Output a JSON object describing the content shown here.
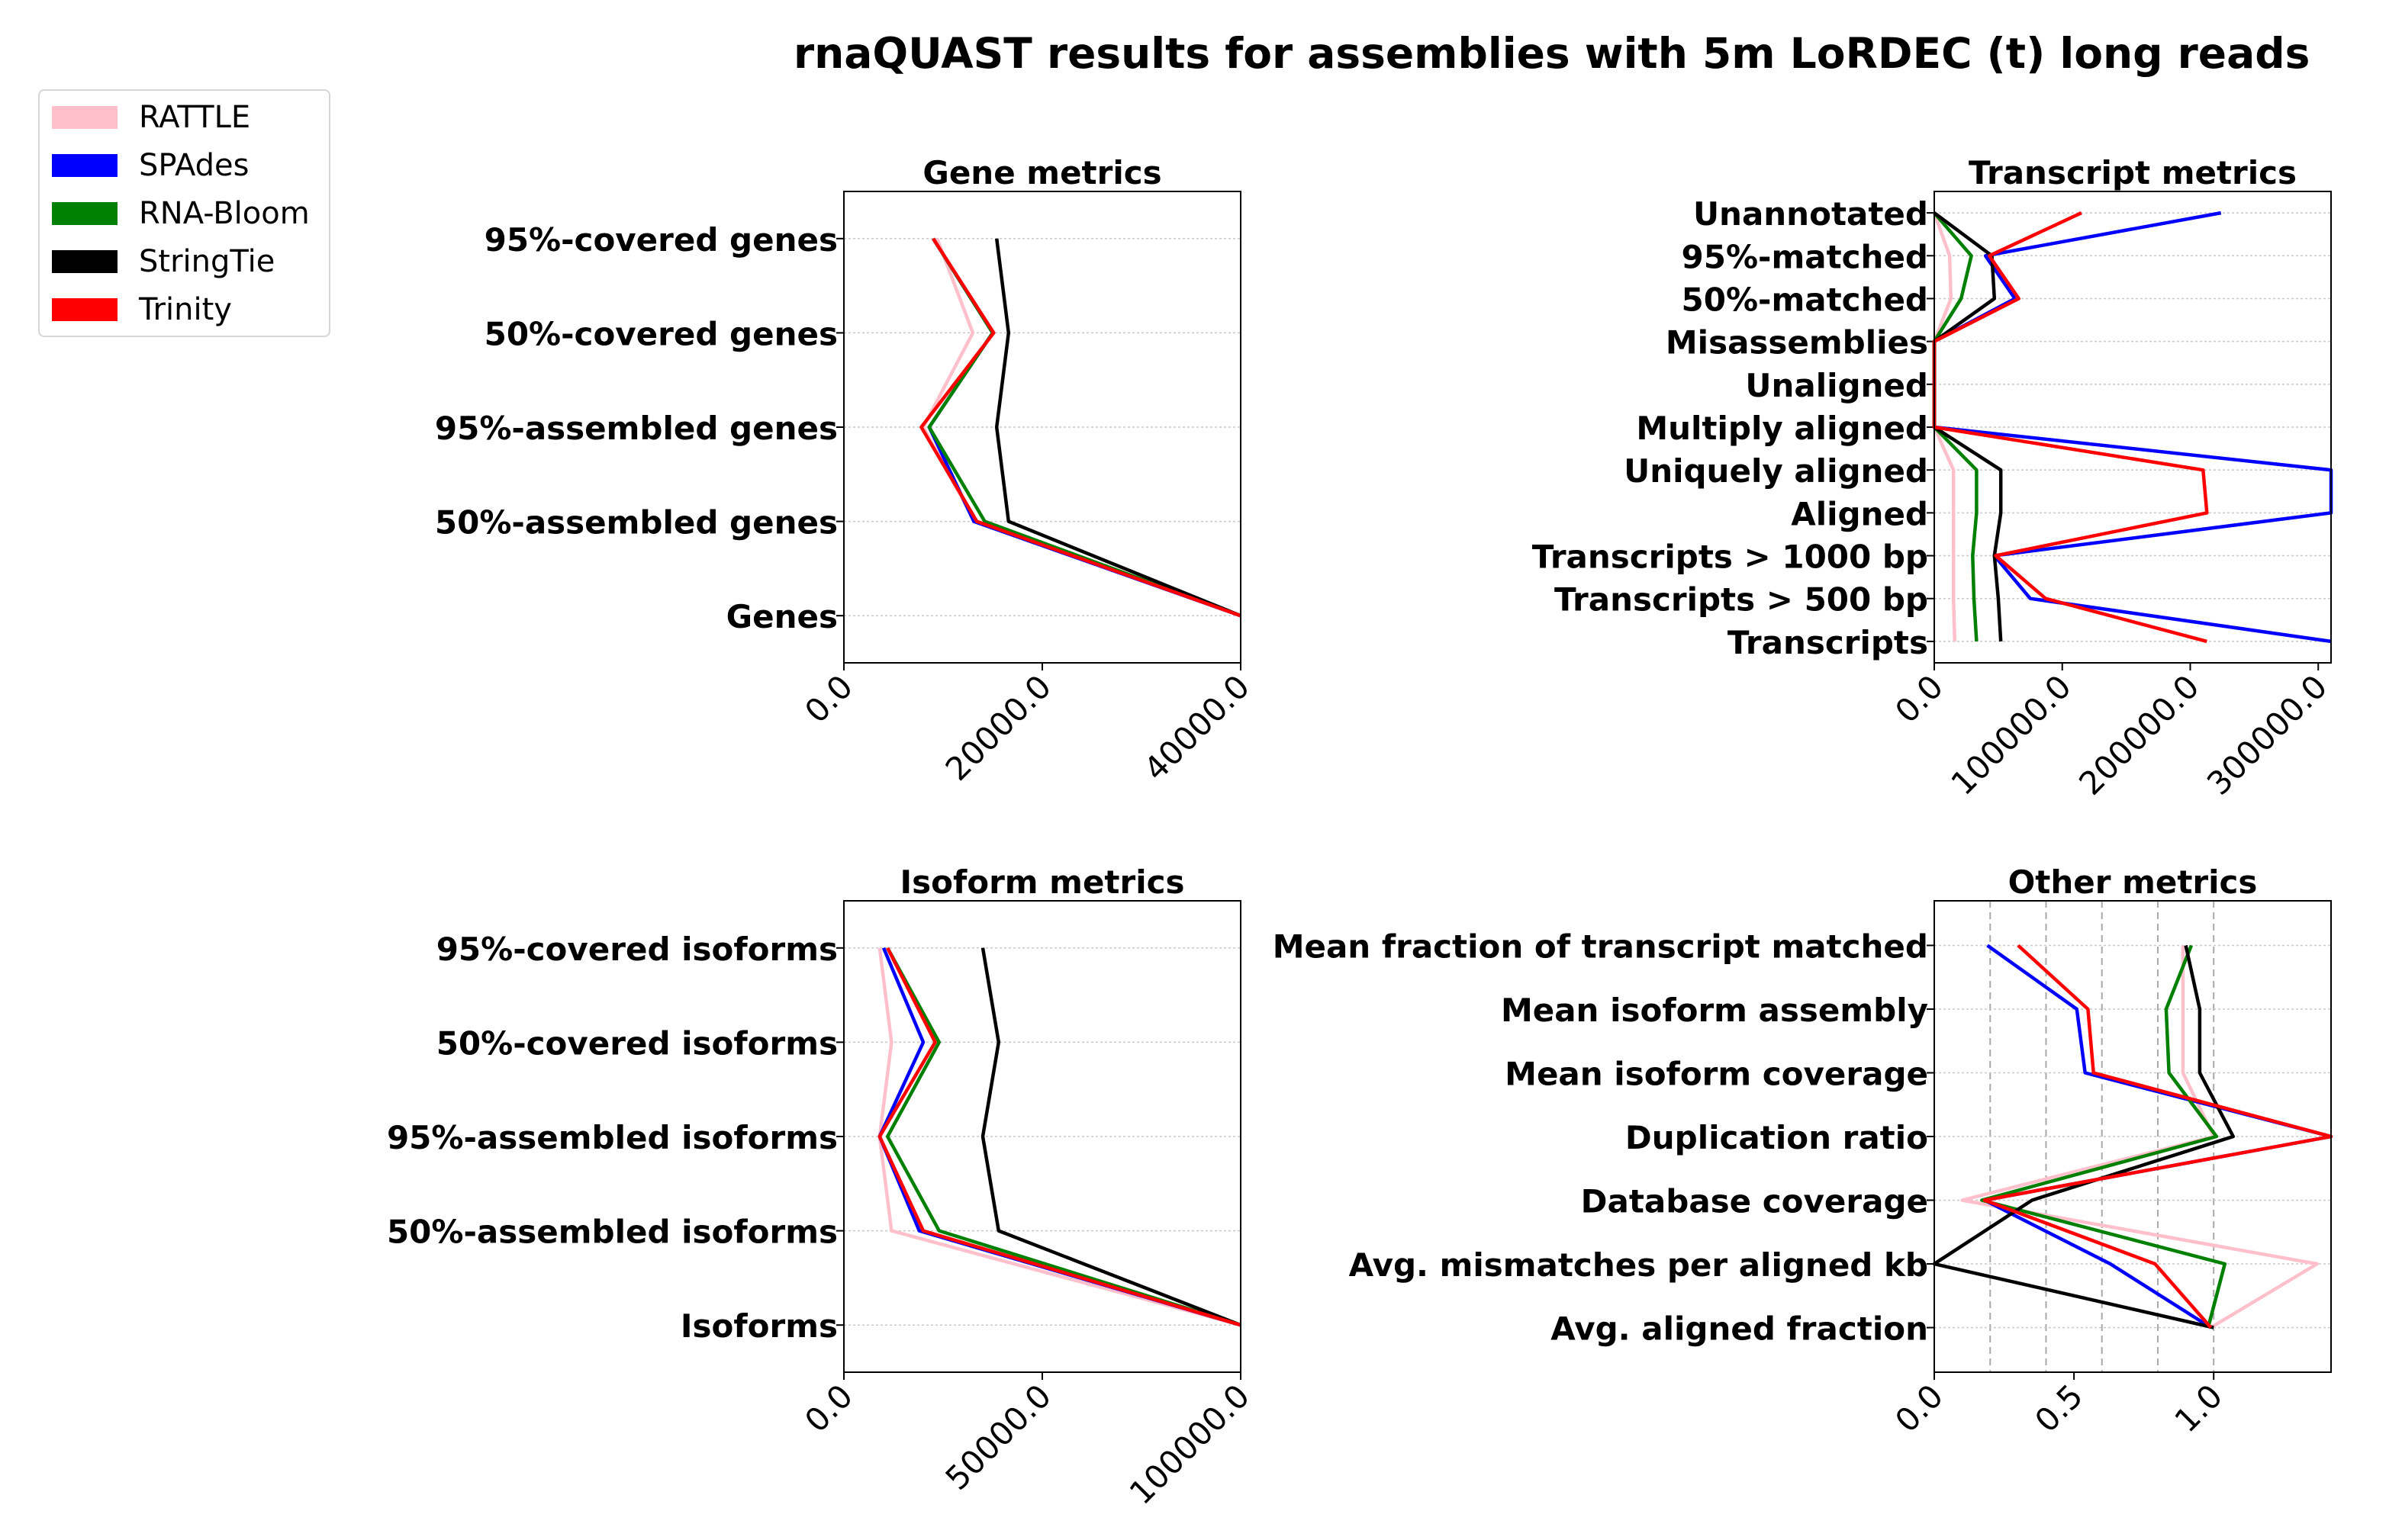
{
  "title": "rnaQUAST results for assemblies with 5m LoRDEC (t) long reads",
  "legend": [
    {
      "name": "RATTLE",
      "color": "#ffc0cb"
    },
    {
      "name": "SPAdes",
      "color": "#0000ff"
    },
    {
      "name": "RNA-Bloom",
      "color": "#008000"
    },
    {
      "name": "StringTie",
      "color": "#000000"
    },
    {
      "name": "Trinity",
      "color": "#ff0000"
    }
  ],
  "chart_data": [
    {
      "type": "line",
      "title": "Gene metrics",
      "categories": [
        "Genes",
        "50%-assembled genes",
        "95%-assembled genes",
        "50%-covered genes",
        "95%-covered genes"
      ],
      "xlim": [
        0,
        40000
      ],
      "xticks": [
        0,
        20000,
        40000
      ],
      "xtick_labels": [
        "0.0",
        "20000.0",
        "40000.0"
      ],
      "grid": "horizontal",
      "series": [
        {
          "name": "RATTLE",
          "color": "#ffc0cb",
          "values": [
            40000,
            13200,
            8000,
            13000,
            9400
          ]
        },
        {
          "name": "SPAdes",
          "color": "#0000ff",
          "values": [
            40000,
            13100,
            8600,
            15000,
            9000
          ]
        },
        {
          "name": "RNA-Bloom",
          "color": "#008000",
          "values": [
            40000,
            14200,
            8600,
            15000,
            9000
          ]
        },
        {
          "name": "StringTie",
          "color": "#000000",
          "values": [
            40000,
            16600,
            15400,
            16600,
            15400
          ]
        },
        {
          "name": "Trinity",
          "color": "#ff0000",
          "values": [
            40000,
            13400,
            7800,
            15100,
            9000
          ]
        }
      ]
    },
    {
      "type": "line",
      "title": "Transcript metrics",
      "categories": [
        "Transcripts",
        "Transcripts > 500 bp",
        "Transcripts > 1000 bp",
        "Aligned",
        "Uniquely aligned",
        "Multiply aligned",
        "Unaligned",
        "Misassemblies",
        "50%-matched",
        "95%-matched",
        "Unannotated"
      ],
      "xlim": [
        0,
        310000
      ],
      "xticks": [
        0,
        100000,
        200000,
        300000
      ],
      "xtick_labels": [
        "0.0",
        "100000.0",
        "200000.0",
        "300000.0"
      ],
      "grid": "horizontal",
      "series": [
        {
          "name": "RATTLE",
          "color": "#ffc0cb",
          "values": [
            16000,
            15000,
            15000,
            15000,
            15000,
            0,
            0,
            0,
            13000,
            12000,
            0
          ]
        },
        {
          "name": "SPAdes",
          "color": "#0000ff",
          "values": [
            310000,
            75000,
            47000,
            310000,
            310000,
            0,
            0,
            0,
            63000,
            40000,
            224000
          ]
        },
        {
          "name": "RNA-Bloom",
          "color": "#008000",
          "values": [
            33000,
            31000,
            30000,
            33000,
            33000,
            0,
            0,
            0,
            21000,
            29000,
            0
          ]
        },
        {
          "name": "StringTie",
          "color": "#000000",
          "values": [
            52000,
            50000,
            47000,
            52000,
            52000,
            0,
            0,
            0,
            47000,
            45000,
            0
          ]
        },
        {
          "name": "Trinity",
          "color": "#ff0000",
          "values": [
            213000,
            87000,
            48000,
            213000,
            210000,
            0,
            0,
            0,
            66000,
            43000,
            115000
          ]
        }
      ]
    },
    {
      "type": "line",
      "title": "Isoform metrics",
      "categories": [
        "Isoforms",
        "50%-assembled isoforms",
        "95%-assembled isoforms",
        "50%-covered isoforms",
        "95%-covered isoforms"
      ],
      "xlim": [
        0,
        100000
      ],
      "xticks": [
        0,
        50000,
        100000
      ],
      "xtick_labels": [
        "0.0",
        "50000.0",
        "100000.0"
      ],
      "grid": "horizontal",
      "series": [
        {
          "name": "RATTLE",
          "color": "#ffc0cb",
          "values": [
            100000,
            12000,
            9000,
            12000,
            9000
          ]
        },
        {
          "name": "SPAdes",
          "color": "#0000ff",
          "values": [
            100000,
            19000,
            9000,
            20000,
            10000
          ]
        },
        {
          "name": "RNA-Bloom",
          "color": "#008000",
          "values": [
            100000,
            24000,
            11000,
            24000,
            11000
          ]
        },
        {
          "name": "StringTie",
          "color": "#000000",
          "values": [
            100000,
            39000,
            35000,
            39000,
            35000
          ]
        },
        {
          "name": "Trinity",
          "color": "#ff0000",
          "values": [
            100000,
            20000,
            9000,
            23000,
            11000
          ]
        }
      ]
    },
    {
      "type": "line",
      "title": "Other metrics",
      "categories": [
        "Avg. aligned fraction",
        "Avg. mismatches per aligned kb",
        "Database coverage",
        "Duplication ratio",
        "Mean isoform coverage",
        "Mean isoform assembly",
        "Mean fraction of transcript matched"
      ],
      "xlim": [
        0,
        1.42
      ],
      "xticks": [
        0,
        0.5,
        1.0
      ],
      "xtick_labels": [
        "0.0",
        "0.5",
        "1.0"
      ],
      "vgrid": [
        0.2,
        0.4,
        0.6,
        0.8,
        1.0
      ],
      "grid": "horizontal + dashed vertical",
      "series": [
        {
          "name": "RATTLE",
          "color": "#ffc0cb",
          "values": [
            0.99,
            1.37,
            0.1,
            1.0,
            0.89,
            0.89,
            0.89
          ]
        },
        {
          "name": "SPAdes",
          "color": "#0000ff",
          "values": [
            0.99,
            0.63,
            0.18,
            1.42,
            0.54,
            0.51,
            0.19
          ]
        },
        {
          "name": "RNA-Bloom",
          "color": "#008000",
          "values": [
            0.98,
            1.04,
            0.17,
            1.01,
            0.84,
            0.83,
            0.92
          ]
        },
        {
          "name": "StringTie",
          "color": "#000000",
          "values": [
            1.0,
            0.0,
            0.35,
            1.07,
            0.95,
            0.95,
            0.9
          ]
        },
        {
          "name": "Trinity",
          "color": "#ff0000",
          "values": [
            0.99,
            0.79,
            0.18,
            1.42,
            0.57,
            0.55,
            0.3
          ]
        }
      ]
    }
  ]
}
